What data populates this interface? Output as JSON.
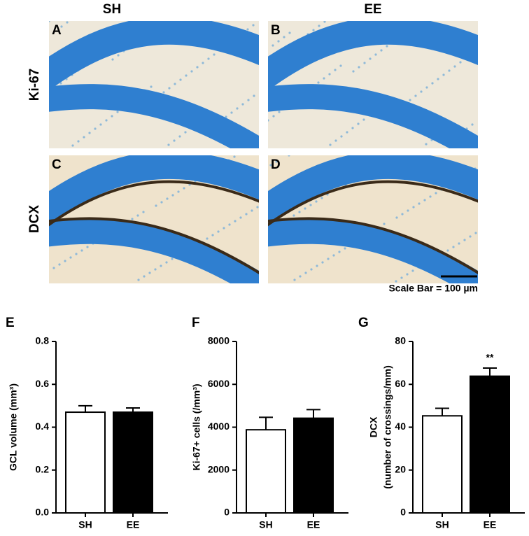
{
  "figure": {
    "column_labels": [
      "SH",
      "EE"
    ],
    "row_labels": [
      "Ki-67",
      "DCX"
    ],
    "panel_labels": [
      "A",
      "B",
      "C",
      "D"
    ],
    "scale_bar": "Scale Bar = 100 µm"
  },
  "chart_data": [
    {
      "type": "bar",
      "panel_label": "E",
      "y_label": [
        "GCL volume (mm³)"
      ],
      "categories": [
        "SH",
        "EE"
      ],
      "values": [
        0.47,
        0.47
      ],
      "errors": [
        0.03,
        0.02
      ],
      "colors": [
        "#ffffff",
        "#000000"
      ],
      "ylim": [
        0,
        0.8
      ],
      "yticks": [
        {
          "value": 0,
          "label": "0.0"
        },
        0.2,
        0.4,
        0.6,
        0.8
      ]
    },
    {
      "type": "bar",
      "panel_label": "F",
      "y_label": [
        "Ki-67+ cells (/mm³)"
      ],
      "categories": [
        "SH",
        "EE"
      ],
      "values": [
        3880,
        4420
      ],
      "errors": [
        580,
        400
      ],
      "colors": [
        "#ffffff",
        "#000000"
      ],
      "ylim": [
        0,
        8000
      ],
      "yticks": [
        0,
        2000,
        4000,
        6000,
        8000
      ]
    },
    {
      "type": "bar",
      "panel_label": "G",
      "y_label": [
        "DCX",
        "(number of crossings/mm)"
      ],
      "categories": [
        "SH",
        "EE"
      ],
      "values": [
        45.3,
        63.8
      ],
      "errors": [
        3.5,
        3.8
      ],
      "colors": [
        "#ffffff",
        "#000000"
      ],
      "ylim": [
        0,
        80
      ],
      "yticks": [
        0,
        20,
        40,
        60,
        80
      ],
      "annotations": [
        "**"
      ]
    }
  ]
}
